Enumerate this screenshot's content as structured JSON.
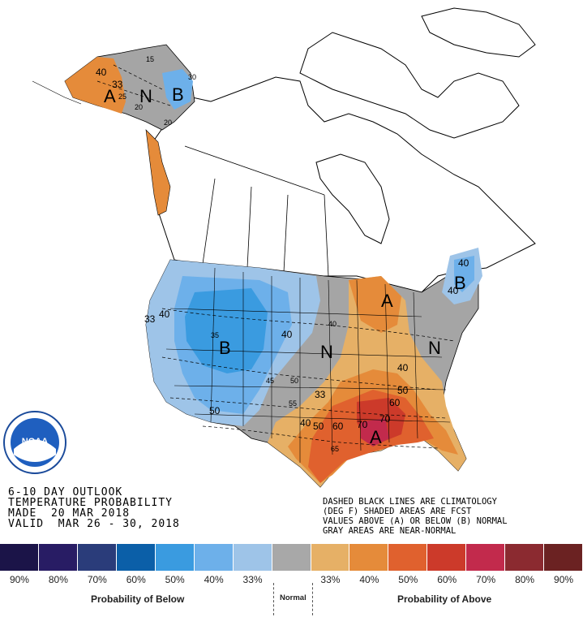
{
  "colors": {
    "below": [
      "#1b1448",
      "#281c64",
      "#2a3c7a",
      "#0b5fa8",
      "#3a9be0",
      "#6db0ea",
      "#9ec4e8"
    ],
    "normal": "#a8a8a8",
    "above": [
      "#e6b066",
      "#e58b3a",
      "#e0612e",
      "#cc3a2a",
      "#c22a4c",
      "#8b2a30",
      "#6b2222"
    ],
    "gray_area": "#999999"
  },
  "header": {
    "line1": "6-10 DAY OUTLOOK",
    "line2": "TEMPERATURE PROBABILITY",
    "line3": "MADE  20 MAR 2018",
    "line4": "VALID  MAR 26 - 30, 2018"
  },
  "notes": {
    "line1": "DASHED BLACK LINES ARE CLIMATOLOGY",
    "line2": "(DEG F) SHADED AREAS ARE FCST",
    "line3": "VALUES ABOVE (A) OR BELOW (B) NORMAL",
    "line4": "GRAY AREAS ARE NEAR-NORMAL"
  },
  "logo": {
    "text": "NOAA"
  },
  "map_labels": {
    "a_alaska": "A",
    "n_alaska": "N",
    "b_alaska": "B",
    "b_west": "B",
    "n_central": "N",
    "a_greatlakes": "A",
    "n_east": "N",
    "b_newengland": "B",
    "a_southeast": "A"
  },
  "prob_labels": {
    "p33_ak": "33",
    "p40_ak": "40",
    "p33_w": "33",
    "p40_w": "40",
    "p50_w": "50",
    "p40_c": "40",
    "p40_ne1": "40",
    "p40_ne2": "40",
    "p33_s": "33",
    "p40_s": "40",
    "p50_s": "50",
    "p60_s": "60",
    "p70_s": "70",
    "p40_se": "40",
    "p50_se": "50",
    "p60_se": "60",
    "p70_se": "70"
  },
  "climatology_labels": {
    "c15": "15",
    "c25": "25",
    "c20": "20",
    "c30": "30",
    "c20b": "20",
    "c35": "35",
    "c40": "40",
    "c45": "45",
    "c50": "50",
    "c55": "55",
    "c65": "65"
  },
  "legend": {
    "percents": [
      "90%",
      "80%",
      "70%",
      "60%",
      "50%",
      "40%",
      "33%",
      "33%",
      "40%",
      "50%",
      "60%",
      "70%",
      "80%",
      "90%"
    ],
    "below_title": "Probability of Below",
    "normal_title": "Normal",
    "above_title": "Probability of Above"
  }
}
